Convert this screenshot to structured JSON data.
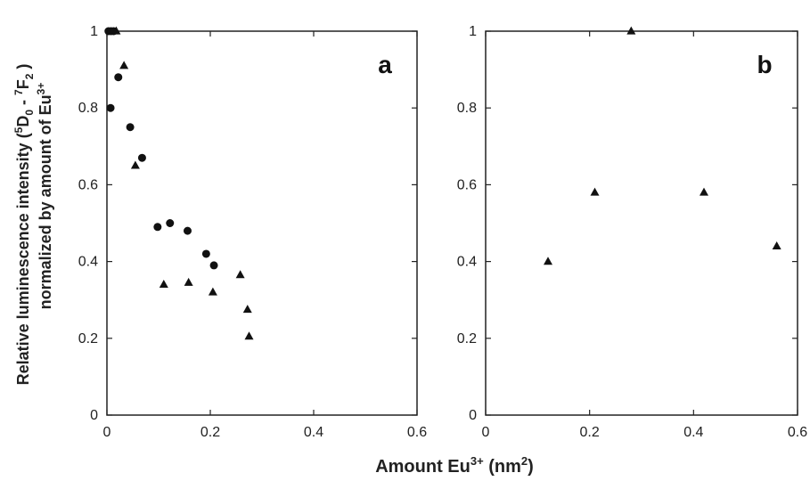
{
  "chart_data": [
    {
      "panel_label": "a",
      "type": "scatter",
      "xlim": [
        0,
        0.6
      ],
      "ylim": [
        0,
        1
      ],
      "xticks": [
        "0",
        "0.2",
        "0.4",
        "0.6"
      ],
      "yticks": [
        "0",
        "0.2",
        "0.4",
        "0.6",
        "0.8",
        "1"
      ],
      "grid": false,
      "series": [
        {
          "marker": "circle",
          "points": [
            [
              0.003,
              1.0
            ],
            [
              0.008,
              1.0
            ],
            [
              0.013,
              1.0
            ],
            [
              0.007,
              0.8
            ],
            [
              0.022,
              0.88
            ],
            [
              0.045,
              0.75
            ],
            [
              0.068,
              0.67
            ],
            [
              0.098,
              0.49
            ],
            [
              0.122,
              0.5
            ],
            [
              0.156,
              0.48
            ],
            [
              0.192,
              0.42
            ],
            [
              0.207,
              0.39
            ]
          ]
        },
        {
          "marker": "triangle",
          "points": [
            [
              0.018,
              1.0
            ],
            [
              0.033,
              0.91
            ],
            [
              0.055,
              0.65
            ],
            [
              0.11,
              0.34
            ],
            [
              0.158,
              0.345
            ],
            [
              0.205,
              0.32
            ],
            [
              0.258,
              0.365
            ],
            [
              0.272,
              0.275
            ],
            [
              0.275,
              0.205
            ]
          ]
        }
      ]
    },
    {
      "panel_label": "b",
      "type": "scatter",
      "xlim": [
        0,
        0.6
      ],
      "ylim": [
        0,
        1
      ],
      "xticks": [
        "0",
        "0.2",
        "0.4",
        "0.6"
      ],
      "yticks": [
        "0",
        "0.2",
        "0.4",
        "0.6",
        "0.8",
        "1"
      ],
      "grid": false,
      "series": [
        {
          "marker": "triangle",
          "points": [
            [
              0.12,
              0.4
            ],
            [
              0.21,
              0.58
            ],
            [
              0.28,
              1.0
            ],
            [
              0.42,
              0.58
            ],
            [
              0.56,
              0.44
            ]
          ]
        }
      ]
    }
  ],
  "labels": {
    "y_line1_pre": "Relative luminescence intensity (",
    "y_line1_sup5": "5",
    "y_line1_D": "D",
    "y_line1_sub0": "0",
    "y_line1_dash": " - ",
    "y_line1_sup7": "7",
    "y_line1_F": "F",
    "y_line1_sub2": "2",
    "y_line1_post": " )",
    "y_line2_pre": "normalized by amount of Eu",
    "y_line2_sup": "3+",
    "x_pre": "Amount Eu",
    "x_sup": "3+",
    "x_mid": " (nm",
    "x_sup2": "2",
    "x_post": ")"
  },
  "colors": {
    "axis": "#222222",
    "marker": "#111111"
  }
}
